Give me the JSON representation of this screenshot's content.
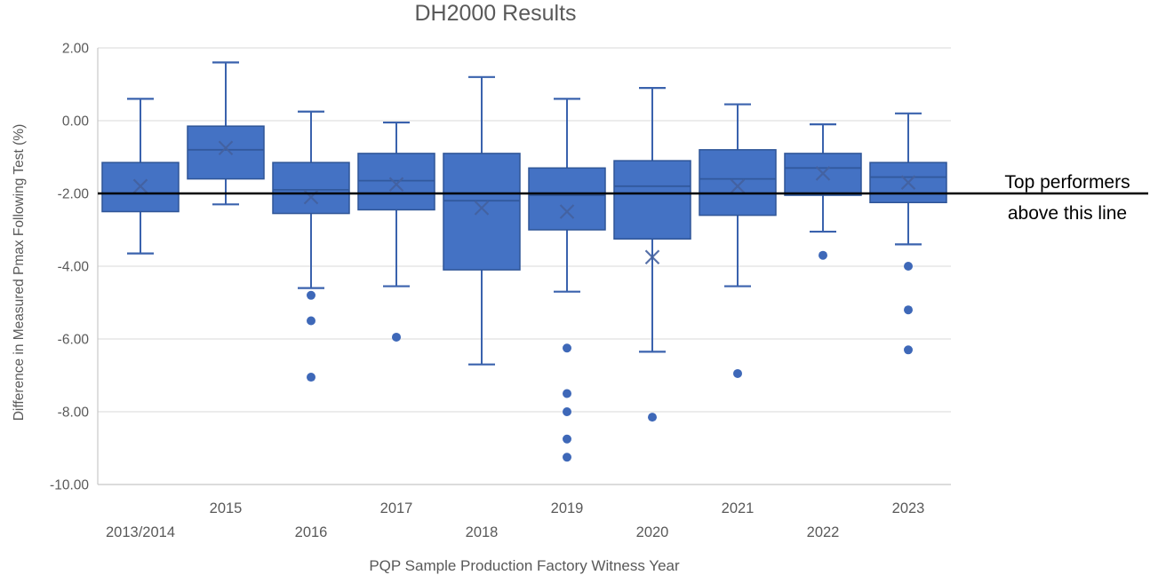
{
  "chart_data": {
    "type": "boxplot",
    "title": "DH2000 Results",
    "xlabel": "PQP Sample Production Factory Witness Year",
    "ylabel": "Difference in Measured Pmax Following Test (%)",
    "ylim": [
      -10,
      2
    ],
    "ytick_values": [
      2,
      0,
      -2,
      -4,
      -6,
      -8,
      -10
    ],
    "ytick_labels": [
      "2.00",
      "0.00",
      "-2.00",
      "-4.00",
      "-6.00",
      "-8.00",
      "-10.00"
    ],
    "grid": true,
    "legend": null,
    "categories": [
      "2013/2014",
      "2015",
      "2016",
      "2017",
      "2018",
      "2019",
      "2020",
      "2021",
      "2022",
      "2023"
    ],
    "boxes": [
      {
        "category": "2013/2014",
        "whisker_low": -3.65,
        "q1": -2.5,
        "median": -2.0,
        "q3": -1.15,
        "whisker_high": 0.6,
        "mean": -1.8,
        "outliers": []
      },
      {
        "category": "2015",
        "whisker_low": -2.3,
        "q1": -1.6,
        "median": -0.8,
        "q3": -0.15,
        "whisker_high": 1.6,
        "mean": -0.75,
        "outliers": []
      },
      {
        "category": "2016",
        "whisker_low": -4.6,
        "q1": -2.55,
        "median": -1.9,
        "q3": -1.15,
        "whisker_high": 0.25,
        "mean": -2.1,
        "outliers": [
          -4.8,
          -5.5,
          -7.05
        ]
      },
      {
        "category": "2017",
        "whisker_low": -4.55,
        "q1": -2.45,
        "median": -1.65,
        "q3": -0.9,
        "whisker_high": -0.05,
        "mean": -1.75,
        "outliers": [
          -5.95
        ]
      },
      {
        "category": "2018",
        "whisker_low": -6.7,
        "q1": -4.1,
        "median": -2.2,
        "q3": -0.9,
        "whisker_high": 1.2,
        "mean": -2.4,
        "outliers": []
      },
      {
        "category": "2019",
        "whisker_low": -4.7,
        "q1": -3.0,
        "median": -2.05,
        "q3": -1.3,
        "whisker_high": 0.6,
        "mean": -2.5,
        "outliers": [
          -6.25,
          -7.5,
          -8.0,
          -8.75,
          -9.25
        ]
      },
      {
        "category": "2020",
        "whisker_low": -6.35,
        "q1": -3.25,
        "median": -1.8,
        "q3": -1.1,
        "whisker_high": 0.9,
        "mean": -3.75,
        "outliers": [
          -8.15
        ]
      },
      {
        "category": "2021",
        "whisker_low": -4.55,
        "q1": -2.6,
        "median": -1.6,
        "q3": -0.8,
        "whisker_high": 0.45,
        "mean": -1.8,
        "outliers": [
          -6.95
        ]
      },
      {
        "category": "2022",
        "whisker_low": -3.05,
        "q1": -2.05,
        "median": -1.3,
        "q3": -0.9,
        "whisker_high": -0.1,
        "mean": -1.45,
        "outliers": [
          -3.7
        ]
      },
      {
        "category": "2023",
        "whisker_low": -3.4,
        "q1": -2.25,
        "median": -1.55,
        "q3": -1.15,
        "whisker_high": 0.2,
        "mean": -1.7,
        "outliers": [
          -4.0,
          -5.2,
          -6.3
        ]
      }
    ],
    "reference_line": {
      "value": -2.0,
      "color": "#000000",
      "label_line1": "Top performers",
      "label_line2": "above this line"
    },
    "colors": {
      "box_fill": "#4472C4",
      "box_border": "#2F5597",
      "whisker": "#3A62AD",
      "median": "#2F5597",
      "mean_marker": "#44619E",
      "outlier": "#3E68B8",
      "gridline": "#D9D9D9",
      "axis_line": "#C8C8C8",
      "text": "#595959",
      "annotation": "#000000"
    }
  }
}
